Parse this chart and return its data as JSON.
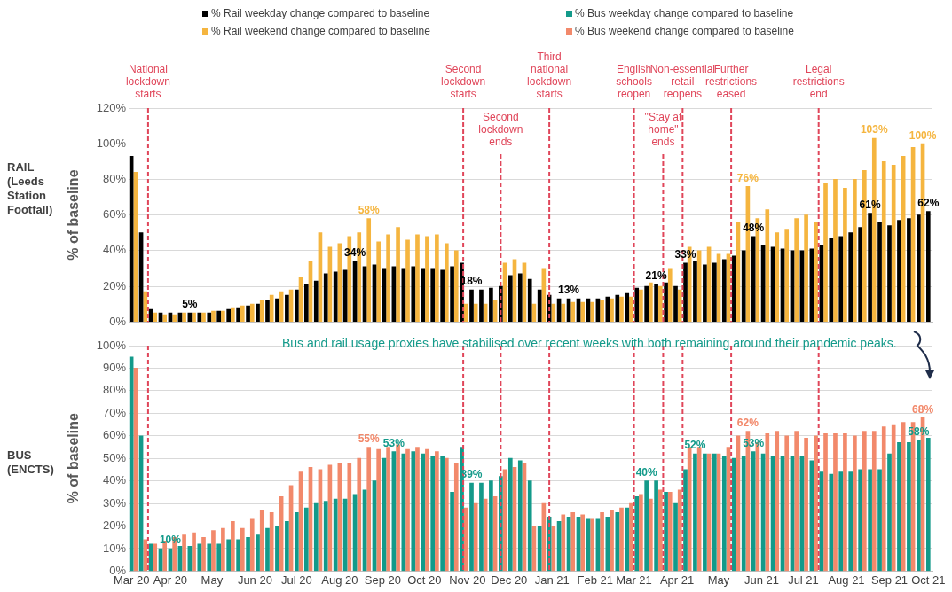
{
  "chart_data": [
    {
      "type": "bar",
      "title": "RAIL (Leeds Station Footfall)",
      "ylabel": "% of baseline",
      "legend": "top",
      "grid": "y",
      "tick_labels": "y",
      "xlim": [
        "2020-03-09",
        "2021-10-09"
      ],
      "ylim": [
        0,
        120
      ],
      "yticks": [
        {
          "value": 0,
          "label": "0%"
        },
        {
          "value": 20,
          "label": "20%"
        },
        {
          "value": 40,
          "label": "40%"
        },
        {
          "value": 60,
          "label": "60%"
        },
        {
          "value": 80,
          "label": "80%"
        },
        {
          "value": 100,
          "label": "100%"
        },
        {
          "value": 120,
          "label": "120%"
        }
      ],
      "ref_lines": [
        {
          "axis": "x",
          "value": "2020-03-23",
          "label": "National lockdown starts",
          "color": "#e0465a",
          "line_style": "dashed"
        },
        {
          "axis": "x",
          "value": "2020-11-05",
          "label": "Second lockdown starts",
          "color": "#e0465a",
          "line_style": "dashed"
        },
        {
          "axis": "x",
          "value": "2020-12-02",
          "label": "Second lockdown ends",
          "color": "#e0465a",
          "line_style": "dashed"
        },
        {
          "axis": "x",
          "value": "2021-01-06",
          "label": "Third national lockdown starts",
          "color": "#e0465a",
          "line_style": "dashed"
        },
        {
          "axis": "x",
          "value": "2021-03-08",
          "label": "English schools reopen",
          "color": "#e0465a",
          "line_style": "dashed"
        },
        {
          "axis": "x",
          "value": "2021-03-29",
          "label": "\"Stay at home\" ends",
          "color": "#e0465a",
          "line_style": "dashed"
        },
        {
          "axis": "x",
          "value": "2021-04-12",
          "label": "Non-essential retail reopens",
          "color": "#e0465a",
          "line_style": "dashed"
        },
        {
          "axis": "x",
          "value": "2021-05-17",
          "label": "Further restrictions eased",
          "color": "#e0465a",
          "line_style": "dashed"
        },
        {
          "axis": "x",
          "value": "2021-07-19",
          "label": "Legal restrictions end",
          "color": "#e0465a",
          "line_style": "dashed"
        }
      ],
      "series": [
        {
          "name": "% Rail weekday change compared to baseline",
          "color": "#000000",
          "x": [
            "2020-03-11",
            "2020-03-18",
            "2020-03-25",
            "2020-04-01",
            "2020-04-08",
            "2020-04-15",
            "2020-04-22",
            "2020-04-29",
            "2020-05-06",
            "2020-05-13",
            "2020-05-20",
            "2020-05-27",
            "2020-06-03",
            "2020-06-10",
            "2020-06-17",
            "2020-06-24",
            "2020-07-01",
            "2020-07-08",
            "2020-07-15",
            "2020-07-22",
            "2020-07-29",
            "2020-08-05",
            "2020-08-12",
            "2020-08-19",
            "2020-08-26",
            "2020-09-02",
            "2020-09-09",
            "2020-09-16",
            "2020-09-23",
            "2020-09-30",
            "2020-10-07",
            "2020-10-14",
            "2020-10-21",
            "2020-10-28",
            "2020-11-04",
            "2020-11-11",
            "2020-11-18",
            "2020-11-25",
            "2020-12-02",
            "2020-12-09",
            "2020-12-16",
            "2020-12-23",
            "2020-12-30",
            "2021-01-06",
            "2021-01-13",
            "2021-01-20",
            "2021-01-27",
            "2021-02-03",
            "2021-02-10",
            "2021-02-17",
            "2021-02-24",
            "2021-03-03",
            "2021-03-10",
            "2021-03-17",
            "2021-03-24",
            "2021-03-31",
            "2021-04-07",
            "2021-04-14",
            "2021-04-21",
            "2021-04-28",
            "2021-05-05",
            "2021-05-12",
            "2021-05-19",
            "2021-05-26",
            "2021-06-02",
            "2021-06-09",
            "2021-06-16",
            "2021-06-23",
            "2021-06-30",
            "2021-07-07",
            "2021-07-14",
            "2021-07-21",
            "2021-07-28",
            "2021-08-04",
            "2021-08-11",
            "2021-08-18",
            "2021-08-25",
            "2021-09-01",
            "2021-09-08",
            "2021-09-15",
            "2021-09-22",
            "2021-09-29",
            "2021-10-06"
          ],
          "values": [
            93,
            50,
            7,
            5,
            5,
            5,
            5,
            5,
            5,
            6,
            7,
            8,
            9,
            10,
            12,
            13,
            15,
            18,
            21,
            23,
            27,
            28,
            29,
            34,
            31,
            32,
            30,
            31,
            30,
            31,
            30,
            30,
            29,
            31,
            33,
            18,
            18,
            19,
            20,
            26,
            27,
            24,
            18,
            15,
            13,
            13,
            13,
            13,
            13,
            14,
            15,
            16,
            19,
            20,
            21,
            22,
            20,
            33,
            34,
            32,
            33,
            35,
            37,
            40,
            48,
            43,
            42,
            41,
            40,
            40,
            41,
            43,
            47,
            48,
            50,
            53,
            61,
            56,
            54,
            57,
            58,
            60,
            62
          ],
          "value_labels": [
            null,
            null,
            null,
            null,
            null,
            null,
            "5%",
            null,
            null,
            null,
            null,
            null,
            null,
            null,
            null,
            null,
            null,
            null,
            null,
            null,
            null,
            null,
            null,
            "34%",
            null,
            null,
            null,
            null,
            null,
            null,
            null,
            null,
            null,
            null,
            null,
            "18%",
            null,
            null,
            null,
            null,
            null,
            null,
            null,
            null,
            null,
            "13%",
            null,
            null,
            null,
            null,
            null,
            null,
            null,
            null,
            "21%",
            null,
            null,
            "33%",
            null,
            null,
            null,
            null,
            null,
            null,
            "48%",
            null,
            null,
            null,
            null,
            null,
            null,
            null,
            null,
            null,
            null,
            null,
            "61%",
            null,
            null,
            null,
            null,
            null,
            "62%"
          ]
        },
        {
          "name": "% Rail weekend change compared to baseline",
          "color": "#f5b53f",
          "x": [
            "2020-03-14",
            "2020-03-21",
            "2020-03-28",
            "2020-04-04",
            "2020-04-11",
            "2020-04-18",
            "2020-04-25",
            "2020-05-02",
            "2020-05-09",
            "2020-05-16",
            "2020-05-23",
            "2020-05-30",
            "2020-06-06",
            "2020-06-13",
            "2020-06-20",
            "2020-06-27",
            "2020-07-04",
            "2020-07-11",
            "2020-07-18",
            "2020-07-25",
            "2020-08-01",
            "2020-08-08",
            "2020-08-15",
            "2020-08-22",
            "2020-08-29",
            "2020-09-05",
            "2020-09-12",
            "2020-09-19",
            "2020-09-26",
            "2020-10-03",
            "2020-10-10",
            "2020-10-17",
            "2020-10-24",
            "2020-10-31",
            "2020-11-07",
            "2020-11-14",
            "2020-11-21",
            "2020-11-28",
            "2020-12-05",
            "2020-12-12",
            "2020-12-19",
            "2020-12-26",
            "2021-01-02",
            "2021-01-09",
            "2021-01-16",
            "2021-01-23",
            "2021-01-30",
            "2021-02-06",
            "2021-02-13",
            "2021-02-20",
            "2021-02-27",
            "2021-03-06",
            "2021-03-13",
            "2021-03-20",
            "2021-03-27",
            "2021-04-03",
            "2021-04-10",
            "2021-04-17",
            "2021-04-24",
            "2021-05-01",
            "2021-05-08",
            "2021-05-15",
            "2021-05-22",
            "2021-05-29",
            "2021-06-05",
            "2021-06-12",
            "2021-06-19",
            "2021-06-26",
            "2021-07-03",
            "2021-07-10",
            "2021-07-17",
            "2021-07-24",
            "2021-07-31",
            "2021-08-07",
            "2021-08-14",
            "2021-08-21",
            "2021-08-28",
            "2021-09-04",
            "2021-09-11",
            "2021-09-18",
            "2021-09-25",
            "2021-10-02"
          ],
          "values": [
            84,
            17,
            5,
            4,
            4,
            5,
            5,
            5,
            6,
            6,
            8,
            9,
            10,
            12,
            15,
            17,
            18,
            25,
            34,
            50,
            42,
            44,
            48,
            50,
            58,
            45,
            49,
            53,
            46,
            49,
            48,
            49,
            44,
            40,
            10,
            10,
            10,
            12,
            33,
            35,
            33,
            10,
            30,
            10,
            10,
            11,
            11,
            11,
            12,
            13,
            14,
            14,
            18,
            22,
            20,
            30,
            18,
            42,
            40,
            42,
            38,
            38,
            56,
            76,
            58,
            63,
            50,
            52,
            58,
            60,
            56,
            78,
            80,
            75,
            80,
            85,
            103,
            90,
            88,
            93,
            98,
            100
          ],
          "value_labels": [
            null,
            null,
            null,
            null,
            null,
            null,
            null,
            null,
            null,
            null,
            null,
            null,
            null,
            null,
            null,
            null,
            null,
            null,
            null,
            null,
            null,
            null,
            null,
            null,
            "58%",
            null,
            null,
            null,
            null,
            null,
            null,
            null,
            null,
            null,
            null,
            null,
            null,
            null,
            null,
            null,
            null,
            null,
            null,
            null,
            null,
            null,
            null,
            null,
            null,
            null,
            null,
            null,
            null,
            null,
            null,
            null,
            null,
            null,
            null,
            null,
            null,
            null,
            null,
            "76%",
            null,
            null,
            null,
            null,
            null,
            null,
            null,
            null,
            null,
            null,
            null,
            null,
            "103%",
            null,
            null,
            null,
            null,
            "100%"
          ]
        }
      ]
    },
    {
      "type": "bar",
      "title": "BUS (ENCTS)",
      "ylabel": "% of baseline",
      "legend": "top",
      "grid": "y",
      "xlim": [
        "2020-03-09",
        "2021-10-09"
      ],
      "ylim": [
        0,
        100
      ],
      "xticks": [
        {
          "value": "2020-03-11",
          "label": "Mar 20"
        },
        {
          "value": "2020-04-08",
          "label": "Apr 20"
        },
        {
          "value": "2020-05-08",
          "label": "May"
        },
        {
          "value": "2020-06-08",
          "label": "Jun 20"
        },
        {
          "value": "2020-07-08",
          "label": "Jul 20"
        },
        {
          "value": "2020-08-08",
          "label": "Aug 20"
        },
        {
          "value": "2020-09-08",
          "label": "Sep 20"
        },
        {
          "value": "2020-10-08",
          "label": "Oct 20"
        },
        {
          "value": "2020-11-08",
          "label": "Nov 20"
        },
        {
          "value": "2020-12-08",
          "label": "Dec 20"
        },
        {
          "value": "2021-01-08",
          "label": "Jan 21"
        },
        {
          "value": "2021-02-08",
          "label": "Feb 21"
        },
        {
          "value": "2021-03-08",
          "label": "Mar 21"
        },
        {
          "value": "2021-04-08",
          "label": "Apr 21"
        },
        {
          "value": "2021-05-08",
          "label": "May"
        },
        {
          "value": "2021-06-08",
          "label": "Jun 21"
        },
        {
          "value": "2021-07-08",
          "label": "Jul 21"
        },
        {
          "value": "2021-08-08",
          "label": "Aug 21"
        },
        {
          "value": "2021-09-08",
          "label": "Sep 21"
        },
        {
          "value": "2021-10-06",
          "label": "Oct 21"
        }
      ],
      "yticks": [
        {
          "value": 0,
          "label": "0%"
        },
        {
          "value": 10,
          "label": "10%"
        },
        {
          "value": 20,
          "label": "20%"
        },
        {
          "value": 30,
          "label": "30%"
        },
        {
          "value": 40,
          "label": "40%"
        },
        {
          "value": 50,
          "label": "50%"
        },
        {
          "value": 60,
          "label": "60%"
        },
        {
          "value": 70,
          "label": "70%"
        },
        {
          "value": 80,
          "label": "80%"
        },
        {
          "value": 90,
          "label": "90%"
        },
        {
          "value": 100,
          "label": "100%"
        }
      ],
      "annotations": [
        "Bus and rail usage proxies have stabilised over recent weeks with both remaining around their pandemic peaks."
      ],
      "ref_lines": [
        {
          "axis": "x",
          "value": "2020-03-23",
          "color": "#e0465a",
          "line_style": "dashed"
        },
        {
          "axis": "x",
          "value": "2020-11-05",
          "color": "#e0465a",
          "line_style": "dashed"
        },
        {
          "axis": "x",
          "value": "2020-12-02",
          "color": "#e0465a",
          "line_style": "dashed"
        },
        {
          "axis": "x",
          "value": "2021-01-06",
          "color": "#e0465a",
          "line_style": "dashed"
        },
        {
          "axis": "x",
          "value": "2021-03-08",
          "color": "#e0465a",
          "line_style": "dashed"
        },
        {
          "axis": "x",
          "value": "2021-03-29",
          "color": "#e0465a",
          "line_style": "dashed"
        },
        {
          "axis": "x",
          "value": "2021-04-12",
          "color": "#e0465a",
          "line_style": "dashed"
        },
        {
          "axis": "x",
          "value": "2021-05-17",
          "color": "#e0465a",
          "line_style": "dashed"
        },
        {
          "axis": "x",
          "value": "2021-07-19",
          "color": "#e0465a",
          "line_style": "dashed"
        }
      ],
      "series": [
        {
          "name": "% Bus weekday change compared to baseline",
          "color": "#139a8a",
          "x": [
            "2020-03-11",
            "2020-03-18",
            "2020-03-25",
            "2020-04-01",
            "2020-04-08",
            "2020-04-15",
            "2020-04-22",
            "2020-04-29",
            "2020-05-06",
            "2020-05-13",
            "2020-05-20",
            "2020-05-27",
            "2020-06-03",
            "2020-06-10",
            "2020-06-17",
            "2020-06-24",
            "2020-07-01",
            "2020-07-08",
            "2020-07-15",
            "2020-07-22",
            "2020-07-29",
            "2020-08-05",
            "2020-08-12",
            "2020-08-19",
            "2020-08-26",
            "2020-09-02",
            "2020-09-09",
            "2020-09-16",
            "2020-09-23",
            "2020-09-30",
            "2020-10-07",
            "2020-10-14",
            "2020-10-21",
            "2020-10-28",
            "2020-11-04",
            "2020-11-11",
            "2020-11-18",
            "2020-11-25",
            "2020-12-02",
            "2020-12-09",
            "2020-12-16",
            "2020-12-23",
            "2020-12-30",
            "2021-01-06",
            "2021-01-13",
            "2021-01-20",
            "2021-01-27",
            "2021-02-03",
            "2021-02-10",
            "2021-02-17",
            "2021-02-24",
            "2021-03-03",
            "2021-03-10",
            "2021-03-17",
            "2021-03-24",
            "2021-03-31",
            "2021-04-07",
            "2021-04-14",
            "2021-04-21",
            "2021-04-28",
            "2021-05-05",
            "2021-05-12",
            "2021-05-19",
            "2021-05-26",
            "2021-06-02",
            "2021-06-09",
            "2021-06-16",
            "2021-06-23",
            "2021-06-30",
            "2021-07-07",
            "2021-07-14",
            "2021-07-21",
            "2021-07-28",
            "2021-08-04",
            "2021-08-11",
            "2021-08-18",
            "2021-08-25",
            "2021-09-01",
            "2021-09-08",
            "2021-09-15",
            "2021-09-22",
            "2021-09-29",
            "2021-10-06"
          ],
          "values": [
            95,
            60,
            12,
            10,
            10,
            11,
            11,
            12,
            12,
            12,
            14,
            14,
            15,
            16,
            19,
            20,
            22,
            26,
            28,
            30,
            31,
            32,
            32,
            34,
            36,
            40,
            50,
            53,
            52,
            53,
            52,
            51,
            51,
            35,
            55,
            39,
            39,
            40,
            42,
            50,
            49,
            40,
            20,
            24,
            22,
            24,
            24,
            23,
            23,
            24,
            26,
            28,
            33,
            40,
            40,
            35,
            30,
            45,
            52,
            52,
            52,
            51,
            50,
            51,
            53,
            52,
            51,
            51,
            51,
            51,
            49,
            44,
            43,
            44,
            44,
            45,
            45,
            45,
            52,
            57,
            57,
            58,
            59
          ],
          "value_labels": [
            null,
            null,
            null,
            null,
            "10%",
            null,
            null,
            null,
            null,
            null,
            null,
            null,
            null,
            null,
            null,
            null,
            null,
            null,
            null,
            null,
            null,
            null,
            null,
            null,
            null,
            null,
            null,
            "53%",
            null,
            null,
            null,
            null,
            null,
            null,
            null,
            "39%",
            null,
            null,
            null,
            null,
            null,
            null,
            null,
            null,
            null,
            null,
            null,
            null,
            null,
            null,
            null,
            null,
            null,
            "40%",
            null,
            null,
            null,
            null,
            "52%",
            null,
            null,
            null,
            null,
            null,
            "53%",
            null,
            null,
            null,
            null,
            null,
            null,
            null,
            null,
            null,
            null,
            null,
            null,
            null,
            null,
            null,
            null,
            "58%",
            null
          ]
        },
        {
          "name": "% Bus weekend change compared to baseline",
          "color": "#f2896b",
          "x": [
            "2020-03-14",
            "2020-03-21",
            "2020-03-28",
            "2020-04-04",
            "2020-04-11",
            "2020-04-18",
            "2020-04-25",
            "2020-05-02",
            "2020-05-09",
            "2020-05-16",
            "2020-05-23",
            "2020-05-30",
            "2020-06-06",
            "2020-06-13",
            "2020-06-20",
            "2020-06-27",
            "2020-07-04",
            "2020-07-11",
            "2020-07-18",
            "2020-07-25",
            "2020-08-01",
            "2020-08-08",
            "2020-08-15",
            "2020-08-22",
            "2020-08-29",
            "2020-09-05",
            "2020-09-12",
            "2020-09-19",
            "2020-09-26",
            "2020-10-03",
            "2020-10-10",
            "2020-10-17",
            "2020-10-24",
            "2020-10-31",
            "2020-11-07",
            "2020-11-14",
            "2020-11-21",
            "2020-11-28",
            "2020-12-05",
            "2020-12-12",
            "2020-12-19",
            "2020-12-26",
            "2021-01-02",
            "2021-01-09",
            "2021-01-16",
            "2021-01-23",
            "2021-01-30",
            "2021-02-06",
            "2021-02-13",
            "2021-02-20",
            "2021-02-27",
            "2021-03-06",
            "2021-03-13",
            "2021-03-20",
            "2021-03-27",
            "2021-04-03",
            "2021-04-10",
            "2021-04-17",
            "2021-04-24",
            "2021-05-01",
            "2021-05-08",
            "2021-05-15",
            "2021-05-22",
            "2021-05-29",
            "2021-06-05",
            "2021-06-12",
            "2021-06-19",
            "2021-06-26",
            "2021-07-03",
            "2021-07-10",
            "2021-07-17",
            "2021-07-24",
            "2021-07-31",
            "2021-08-07",
            "2021-08-14",
            "2021-08-21",
            "2021-08-28",
            "2021-09-04",
            "2021-09-11",
            "2021-09-18",
            "2021-09-25",
            "2021-10-02"
          ],
          "values": [
            90,
            14,
            12,
            13,
            15,
            16,
            17,
            15,
            18,
            19,
            22,
            19,
            23,
            27,
            26,
            33,
            38,
            44,
            46,
            45,
            47,
            48,
            48,
            50,
            55,
            54,
            55,
            56,
            54,
            55,
            54,
            53,
            50,
            48,
            28,
            30,
            32,
            33,
            45,
            46,
            48,
            20,
            30,
            20,
            25,
            26,
            25,
            23,
            26,
            27,
            28,
            30,
            34,
            32,
            36,
            35,
            36,
            55,
            55,
            52,
            52,
            55,
            60,
            62,
            57,
            61,
            62,
            60,
            62,
            59,
            60,
            61,
            61,
            61,
            60,
            62,
            62,
            64,
            65,
            66,
            66,
            68
          ],
          "value_labels": [
            null,
            null,
            null,
            null,
            null,
            null,
            null,
            null,
            null,
            null,
            null,
            null,
            null,
            null,
            null,
            null,
            null,
            null,
            null,
            null,
            null,
            null,
            null,
            null,
            "55%",
            null,
            null,
            null,
            null,
            null,
            null,
            null,
            null,
            null,
            null,
            null,
            null,
            null,
            null,
            null,
            null,
            null,
            null,
            null,
            null,
            null,
            null,
            null,
            null,
            null,
            null,
            null,
            null,
            null,
            null,
            null,
            null,
            null,
            null,
            null,
            null,
            null,
            null,
            "62%",
            null,
            null,
            null,
            null,
            null,
            null,
            null,
            null,
            null,
            null,
            null,
            null,
            null,
            null,
            null,
            null,
            null,
            "68%"
          ]
        }
      ]
    }
  ]
}
